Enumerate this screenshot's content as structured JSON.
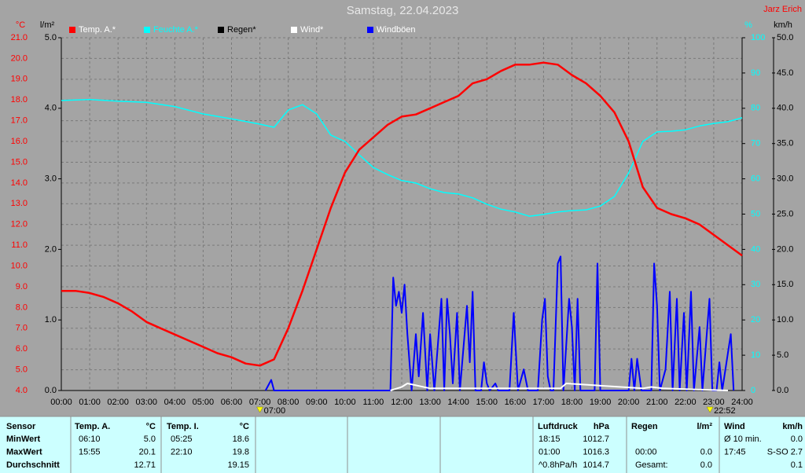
{
  "chart_data": {
    "type": "line",
    "title": "Samstag, 22.04.2023",
    "author": "Jarz Erich",
    "units": {
      "y": "°C",
      "y2": "l/m²",
      "y3": "%",
      "y4": "km/h"
    },
    "xlim": [
      0,
      24
    ],
    "xticks": [
      {
        "value": 0,
        "label": "00:00"
      },
      {
        "value": 1,
        "label": "01:00"
      },
      {
        "value": 2,
        "label": "02:00"
      },
      {
        "value": 3,
        "label": "03:00"
      },
      {
        "value": 4,
        "label": "04:00"
      },
      {
        "value": 5,
        "label": "05:00"
      },
      {
        "value": 6,
        "label": "06:00"
      },
      {
        "value": 7,
        "label": "07:00"
      },
      {
        "value": 8,
        "label": "08:00"
      },
      {
        "value": 9,
        "label": "09:00"
      },
      {
        "value": 10,
        "label": "10:00"
      },
      {
        "value": 11,
        "label": "11:00"
      },
      {
        "value": 12,
        "label": "12:00"
      },
      {
        "value": 13,
        "label": "13:00"
      },
      {
        "value": 14,
        "label": "14:00"
      },
      {
        "value": 15,
        "label": "15:00"
      },
      {
        "value": 16,
        "label": "16:00"
      },
      {
        "value": 17,
        "label": "17:00"
      },
      {
        "value": 18,
        "label": "18:00"
      },
      {
        "value": 19,
        "label": "19:00"
      },
      {
        "value": 20,
        "label": "20:00"
      },
      {
        "value": 21,
        "label": "21:00"
      },
      {
        "value": 22,
        "label": "22:00"
      },
      {
        "value": 23,
        "label": "23:00"
      },
      {
        "value": 24,
        "label": "24:00"
      }
    ],
    "ylim": [
      4,
      21
    ],
    "yticks": [
      {
        "value": 4,
        "label": "4.0"
      },
      {
        "value": 5,
        "label": "5.0"
      },
      {
        "value": 6,
        "label": "6.0"
      },
      {
        "value": 7,
        "label": "7.0"
      },
      {
        "value": 8,
        "label": "8.0"
      },
      {
        "value": 9,
        "label": "9.0"
      },
      {
        "value": 10,
        "label": "10.0"
      },
      {
        "value": 11,
        "label": "11.0"
      },
      {
        "value": 12,
        "label": "12.0"
      },
      {
        "value": 13,
        "label": "13.0"
      },
      {
        "value": 14,
        "label": "14.0"
      },
      {
        "value": 15,
        "label": "15.0"
      },
      {
        "value": 16,
        "label": "16.0"
      },
      {
        "value": 17,
        "label": "17.0"
      },
      {
        "value": 18,
        "label": "18.0"
      },
      {
        "value": 19,
        "label": "19.0"
      },
      {
        "value": 20,
        "label": "20.0"
      },
      {
        "value": 21,
        "label": "21.0"
      }
    ],
    "y2lim": [
      0,
      5
    ],
    "y2ticks": [
      {
        "value": 0,
        "label": "0.0"
      },
      {
        "value": 1,
        "label": "1.0"
      },
      {
        "value": 2,
        "label": "2.0"
      },
      {
        "value": 3,
        "label": "3.0"
      },
      {
        "value": 4,
        "label": "4.0"
      },
      {
        "value": 5,
        "label": "5.0"
      }
    ],
    "y3lim": [
      0,
      100
    ],
    "y3ticks": [
      0,
      10,
      20,
      30,
      40,
      50,
      60,
      70,
      80,
      90,
      100
    ],
    "y4lim": [
      0,
      50
    ],
    "y4ticks": [
      {
        "value": 0,
        "label": "0.0"
      },
      {
        "value": 5,
        "label": "5.0"
      },
      {
        "value": 10,
        "label": "10.0"
      },
      {
        "value": 15,
        "label": "15.0"
      },
      {
        "value": 20,
        "label": "20.0"
      },
      {
        "value": 25,
        "label": "25.0"
      },
      {
        "value": 30,
        "label": "30.0"
      },
      {
        "value": 35,
        "label": "35.0"
      },
      {
        "value": 40,
        "label": "40.0"
      },
      {
        "value": 45,
        "label": "45.0"
      },
      {
        "value": 50,
        "label": "50.0"
      }
    ],
    "grid": true,
    "series": [
      {
        "name": "Temp. A.*",
        "color": "#ff0000",
        "axis": "y",
        "x": [
          0,
          0.5,
          1,
          1.5,
          2,
          2.5,
          3,
          3.5,
          4,
          4.5,
          5,
          5.5,
          6,
          6.5,
          7,
          7.5,
          8,
          8.5,
          9,
          9.5,
          10,
          10.5,
          11,
          11.5,
          12,
          12.5,
          13,
          13.5,
          14,
          14.5,
          15,
          15.5,
          16,
          16.5,
          17,
          17.5,
          18,
          18.5,
          19,
          19.5,
          20,
          20.5,
          21,
          21.5,
          22,
          22.5,
          23,
          23.5,
          24
        ],
        "values": [
          8.8,
          8.8,
          8.7,
          8.5,
          8.2,
          7.8,
          7.3,
          7.0,
          6.7,
          6.4,
          6.1,
          5.8,
          5.6,
          5.3,
          5.2,
          5.5,
          7.0,
          8.8,
          10.8,
          12.8,
          14.5,
          15.6,
          16.2,
          16.8,
          17.2,
          17.3,
          17.6,
          17.9,
          18.2,
          18.8,
          19.0,
          19.4,
          19.7,
          19.7,
          19.8,
          19.7,
          19.2,
          18.8,
          18.2,
          17.4,
          16.0,
          13.8,
          12.8,
          12.5,
          12.3,
          12.0,
          11.5,
          11.0,
          10.5
        ]
      },
      {
        "name": "Feuchte A.*",
        "color": "#00ffff",
        "axis": "y3",
        "x": [
          0,
          1,
          2,
          3,
          4,
          5,
          6,
          7,
          7.5,
          8,
          8.5,
          9,
          9.5,
          10,
          10.5,
          11,
          11.5,
          12,
          12.5,
          13,
          13.5,
          14,
          14.5,
          15,
          15.5,
          16,
          16.5,
          17,
          17.5,
          18,
          18.5,
          19,
          19.5,
          20,
          20.5,
          21,
          21.5,
          22,
          22.5,
          23,
          23.5,
          24
        ],
        "values": [
          82.2,
          82.5,
          82.0,
          81.7,
          80.5,
          78.4,
          77.0,
          75.5,
          74.6,
          79.5,
          81.0,
          78.4,
          72.4,
          70.6,
          66.8,
          63.2,
          61.2,
          59.5,
          58.8,
          57.2,
          56.1,
          55.7,
          54.6,
          52.8,
          51.4,
          50.6,
          49.4,
          49.9,
          50.6,
          51.0,
          51.2,
          52.3,
          55.0,
          61.7,
          70.6,
          73.3,
          73.5,
          73.9,
          75.0,
          75.7,
          76.2,
          77.3
        ]
      },
      {
        "name": "Regen*",
        "color": "#000000",
        "axis": "y2",
        "x": [],
        "values": []
      },
      {
        "name": "Wind*",
        "color": "#ffffff",
        "axis": "y4",
        "x": [
          11.6,
          12.0,
          12.2,
          13.0,
          17.6,
          17.8,
          20.5,
          20.8,
          21.2,
          23.5
        ],
        "values": [
          0,
          0.5,
          1,
          0.3,
          0.3,
          1,
          0.3,
          0.5,
          0.3,
          0
        ]
      },
      {
        "name": "Windböen",
        "color": "#0000ff",
        "axis": "y4",
        "x": [
          7.2,
          7.4,
          7.5,
          11.6,
          11.7,
          11.8,
          11.9,
          12.0,
          12.1,
          12.2,
          12.35,
          12.5,
          12.6,
          12.75,
          12.9,
          13.0,
          13.15,
          13.4,
          13.5,
          13.6,
          13.7,
          13.8,
          13.95,
          14.05,
          14.3,
          14.4,
          14.5,
          14.6,
          14.8,
          14.9,
          15.0,
          15.1,
          15.3,
          15.4,
          15.8,
          15.95,
          16.1,
          16.3,
          16.45,
          16.8,
          16.95,
          17.05,
          17.15,
          17.25,
          17.35,
          17.5,
          17.6,
          17.7,
          17.9,
          18.0,
          18.1,
          18.2,
          18.3,
          18.8,
          18.9,
          19.0,
          20.0,
          20.1,
          20.2,
          20.3,
          20.45,
          20.8,
          20.9,
          21.0,
          21.1,
          21.3,
          21.45,
          21.55,
          21.7,
          21.8,
          21.95,
          22.05,
          22.2,
          22.3,
          22.5,
          22.6,
          22.85,
          22.95,
          23.1,
          23.2,
          23.3,
          23.6,
          23.7
        ],
        "values": [
          0,
          1.5,
          0,
          0,
          16,
          12,
          14,
          11,
          15,
          8,
          0,
          8,
          2,
          11,
          0,
          8,
          0,
          13,
          0,
          13,
          8,
          1,
          11,
          0,
          12,
          4,
          14,
          0,
          0,
          4,
          1,
          0,
          1,
          0,
          0,
          11,
          0,
          3,
          0,
          0,
          10,
          13,
          2,
          0,
          0,
          18,
          19,
          0,
          13,
          9,
          0,
          13,
          0,
          0,
          18,
          0,
          0,
          4.5,
          0,
          4.5,
          0,
          0,
          18,
          12,
          0,
          3,
          14,
          0,
          13,
          0,
          11,
          0,
          14,
          0,
          9,
          0,
          13,
          0,
          0,
          4,
          0,
          8,
          0
        ]
      }
    ],
    "annotations": [
      {
        "x": 7,
        "label": "07:00"
      },
      {
        "x": 22.8667,
        "label": "22:52"
      }
    ]
  },
  "table": {
    "header": [
      "Sensor",
      "Temp. A.",
      "°C",
      "Temp. I.",
      "°C",
      "Luftdruck",
      "hPa",
      "Regen",
      "l/m²",
      "Wind",
      "km/h"
    ],
    "rows": [
      [
        "MinWert",
        "06:10",
        "5.0",
        "05:25",
        "18.6",
        "18:15",
        "1012.7",
        null,
        null,
        "Ø 10 min.",
        "0.0"
      ],
      [
        "MaxWert",
        "15:55",
        "20.1",
        "22:10",
        "19.8",
        "01:00",
        "1016.3",
        "00:00",
        "0.0",
        "17:45",
        "S-SO 2.7"
      ],
      [
        "Durchschnitt",
        null,
        "12.71",
        null,
        "19.15",
        "^0.8hPa/h",
        "1014.7",
        "Gesamt:",
        "0.0",
        null,
        "0.1"
      ]
    ]
  }
}
